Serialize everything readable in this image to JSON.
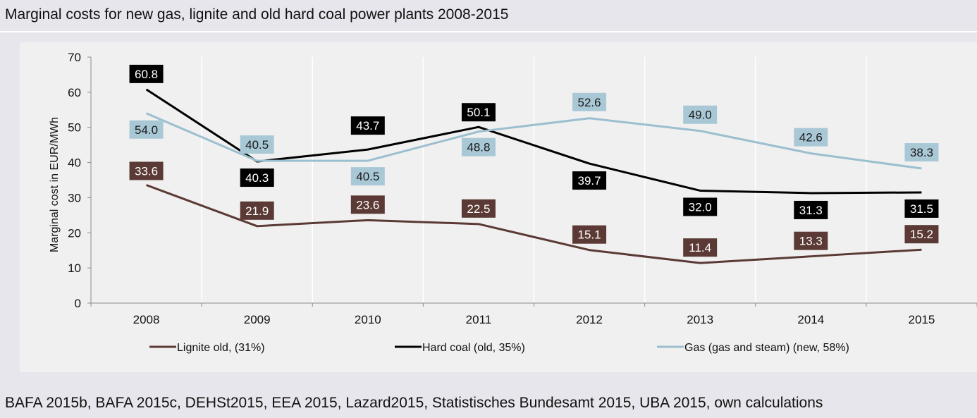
{
  "title": "Marginal costs for new gas, lignite and old hard coal power plants 2008-2015",
  "source": "BAFA 2015b, BAFA 2015c, DEHSt2015, EEA 2015, Lazard2015, Statistisches Bundesamt 2015, UBA 2015, own calculations",
  "chart_data": {
    "type": "line",
    "title": "Marginal costs for new gas, lignite and old hard coal power plants 2008-2015",
    "ylabel": "Marginal cost in EUR/MWh",
    "xlabel": "",
    "ylim": [
      0,
      70
    ],
    "yticks": [
      0,
      10,
      20,
      30,
      40,
      50,
      60,
      70
    ],
    "categories": [
      "2008",
      "2009",
      "2010",
      "2011",
      "2012",
      "2013",
      "2014",
      "2015"
    ],
    "grid": "vertical",
    "legend_position": "bottom",
    "series": [
      {
        "name": "Lignite old, (31%)",
        "color": "#5b3a35",
        "values": [
          33.6,
          21.9,
          23.6,
          22.5,
          15.1,
          11.4,
          13.3,
          15.2
        ],
        "labels": [
          "33.6",
          "21.9",
          "23.6",
          "22.5",
          "15.1",
          "11.4",
          "13.3",
          "15.2"
        ]
      },
      {
        "name": "Hard coal (old, 35%)",
        "color": "#000000",
        "values": [
          60.8,
          40.3,
          43.7,
          50.1,
          39.7,
          32.0,
          31.3,
          31.5
        ],
        "labels": [
          "60.8",
          "40.3",
          "43.7",
          "50.1",
          "39.7",
          "32.0",
          "31.3",
          "31.5"
        ]
      },
      {
        "name": "Gas (gas and steam) (new, 58%)",
        "color": "#9bbfcf",
        "values": [
          54.0,
          40.5,
          40.5,
          48.8,
          52.6,
          49.0,
          42.6,
          38.3
        ],
        "labels": [
          "54.0",
          "40.5",
          "40.5",
          "48.8",
          "52.6",
          "49.0",
          "42.6",
          "38.3"
        ]
      }
    ]
  }
}
